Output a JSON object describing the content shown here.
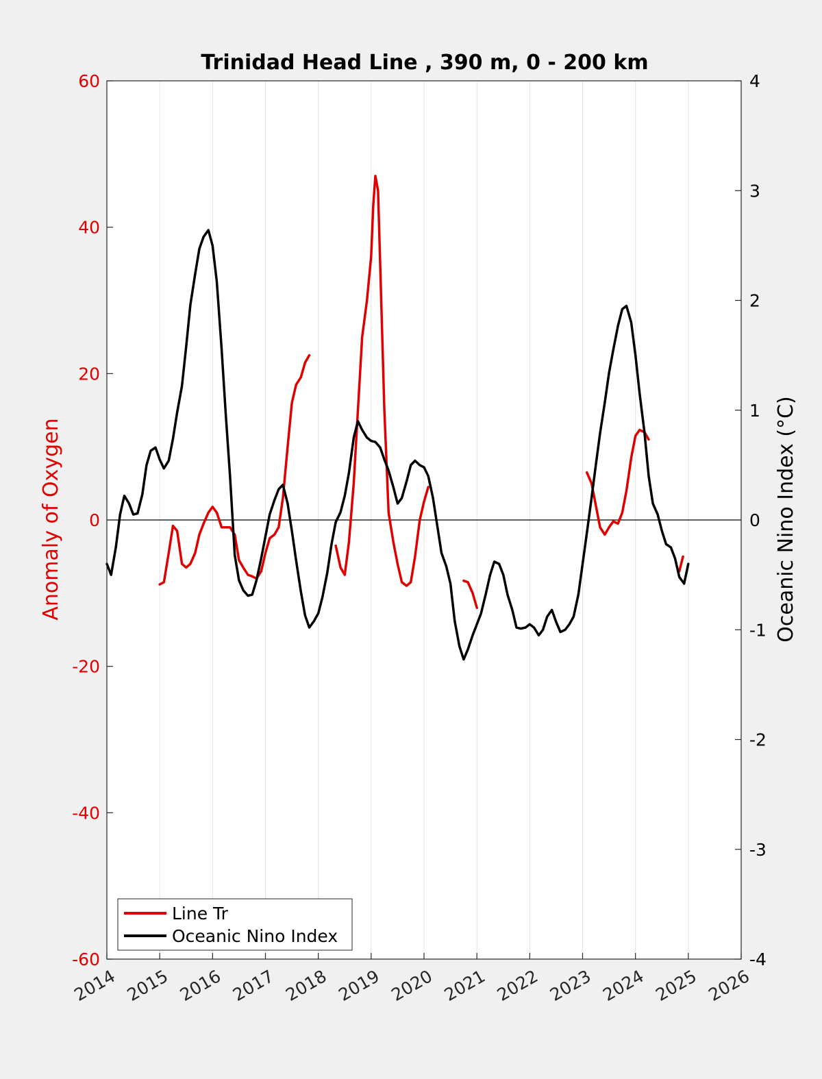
{
  "chart_data": {
    "type": "line",
    "title": "Trinidad Head Line , 390 m, 0 - 200 km",
    "xlabel": "",
    "ylabel_left": "Anomaly of Oxygen",
    "ylabel_right": "Oceanic Nino Index (°C)",
    "xlim": [
      2014,
      2026
    ],
    "ylim_left": [
      -60,
      60
    ],
    "ylim_right": [
      -4,
      4
    ],
    "x_ticks": [
      2014,
      2015,
      2016,
      2017,
      2018,
      2019,
      2020,
      2021,
      2022,
      2023,
      2024,
      2025,
      2026
    ],
    "y_ticks_left": [
      60,
      40,
      20,
      0,
      -20,
      -40,
      -60
    ],
    "y_ticks_right": [
      4,
      3,
      2,
      1,
      0,
      -1,
      -2,
      -3,
      -4
    ],
    "grid": "vertical",
    "zero_line": true,
    "legend_position": "bottom-left",
    "colors": {
      "line_tr": "#e00000",
      "oni": "#000000"
    },
    "series": [
      {
        "name": "Line Tr",
        "axis": "left",
        "color": "#e00000",
        "segments": [
          [
            [
              2015.0,
              -8.8
            ],
            [
              2015.08,
              -8.5
            ],
            [
              2015.17,
              -4.5
            ],
            [
              2015.25,
              -0.8
            ],
            [
              2015.33,
              -1.5
            ],
            [
              2015.42,
              -6.0
            ],
            [
              2015.5,
              -6.5
            ],
            [
              2015.58,
              -6.0
            ],
            [
              2015.67,
              -4.5
            ],
            [
              2015.75,
              -2.0
            ],
            [
              2015.83,
              -0.5
            ],
            [
              2015.92,
              1.0
            ],
            [
              2016.0,
              1.8
            ],
            [
              2016.08,
              1.0
            ],
            [
              2016.17,
              -1.0
            ],
            [
              2016.25,
              -1.0
            ],
            [
              2016.33,
              -1.0
            ],
            [
              2016.42,
              -2.0
            ],
            [
              2016.5,
              -5.5
            ],
            [
              2016.58,
              -6.5
            ],
            [
              2016.67,
              -7.5
            ],
            [
              2016.75,
              -7.7
            ],
            [
              2016.83,
              -8.0
            ],
            [
              2016.92,
              -7.0
            ],
            [
              2017.0,
              -4.5
            ],
            [
              2017.08,
              -2.5
            ],
            [
              2017.17,
              -2.0
            ],
            [
              2017.25,
              -1.0
            ],
            [
              2017.33,
              3.0
            ],
            [
              2017.42,
              10.0
            ],
            [
              2017.5,
              16.0
            ],
            [
              2017.58,
              18.5
            ],
            [
              2017.67,
              19.5
            ],
            [
              2017.75,
              21.5
            ],
            [
              2017.83,
              22.5
            ]
          ],
          [
            [
              2018.33,
              -3.5
            ],
            [
              2018.42,
              -6.5
            ],
            [
              2018.5,
              -7.5
            ],
            [
              2018.58,
              -3.0
            ],
            [
              2018.67,
              5.0
            ],
            [
              2018.75,
              15.0
            ],
            [
              2018.83,
              25.0
            ],
            [
              2018.92,
              30.0
            ],
            [
              2019.0,
              36.0
            ],
            [
              2019.04,
              43.0
            ],
            [
              2019.08,
              47.0
            ],
            [
              2019.13,
              45.0
            ],
            [
              2019.17,
              35.0
            ],
            [
              2019.25,
              15.0
            ],
            [
              2019.33,
              1.0
            ],
            [
              2019.42,
              -3.0
            ],
            [
              2019.5,
              -6.0
            ],
            [
              2019.58,
              -8.5
            ],
            [
              2019.67,
              -9.0
            ],
            [
              2019.75,
              -8.5
            ],
            [
              2019.83,
              -5.0
            ],
            [
              2019.92,
              0.0
            ],
            [
              2020.0,
              2.5
            ],
            [
              2020.08,
              4.5
            ]
          ],
          [
            [
              2020.75,
              -8.3
            ],
            [
              2020.83,
              -8.5
            ],
            [
              2020.92,
              -10.0
            ],
            [
              2021.0,
              -12.0
            ]
          ],
          [
            [
              2023.08,
              6.5
            ],
            [
              2023.17,
              5.0
            ],
            [
              2023.25,
              2.0
            ],
            [
              2023.33,
              -1.0
            ],
            [
              2023.42,
              -2.0
            ],
            [
              2023.5,
              -1.0
            ],
            [
              2023.58,
              -0.2
            ],
            [
              2023.67,
              -0.5
            ],
            [
              2023.75,
              1.0
            ],
            [
              2023.83,
              4.0
            ],
            [
              2023.92,
              8.5
            ],
            [
              2024.0,
              11.5
            ],
            [
              2024.08,
              12.3
            ],
            [
              2024.17,
              12.0
            ],
            [
              2024.25,
              11.0
            ]
          ],
          [
            [
              2024.83,
              -7.0
            ],
            [
              2024.9,
              -5.0
            ]
          ]
        ]
      },
      {
        "name": "Oceanic Nino Index",
        "axis": "right",
        "color": "#000000",
        "points": [
          [
            2014.0,
            -0.4
          ],
          [
            2014.08,
            -0.5
          ],
          [
            2014.17,
            -0.25
          ],
          [
            2014.25,
            0.05
          ],
          [
            2014.33,
            0.22
          ],
          [
            2014.42,
            0.15
          ],
          [
            2014.5,
            0.05
          ],
          [
            2014.58,
            0.06
          ],
          [
            2014.67,
            0.23
          ],
          [
            2014.75,
            0.5
          ],
          [
            2014.83,
            0.63
          ],
          [
            2014.92,
            0.66
          ],
          [
            2015.0,
            0.55
          ],
          [
            2015.08,
            0.47
          ],
          [
            2015.17,
            0.54
          ],
          [
            2015.25,
            0.74
          ],
          [
            2015.33,
            0.98
          ],
          [
            2015.42,
            1.22
          ],
          [
            2015.5,
            1.58
          ],
          [
            2015.58,
            1.96
          ],
          [
            2015.67,
            2.24
          ],
          [
            2015.75,
            2.47
          ],
          [
            2015.83,
            2.58
          ],
          [
            2015.92,
            2.64
          ],
          [
            2016.0,
            2.5
          ],
          [
            2016.08,
            2.17
          ],
          [
            2016.17,
            1.56
          ],
          [
            2016.25,
            0.96
          ],
          [
            2016.33,
            0.4
          ],
          [
            2016.42,
            -0.32
          ],
          [
            2016.5,
            -0.55
          ],
          [
            2016.58,
            -0.64
          ],
          [
            2016.67,
            -0.69
          ],
          [
            2016.75,
            -0.68
          ],
          [
            2016.83,
            -0.55
          ],
          [
            2016.92,
            -0.35
          ],
          [
            2017.0,
            -0.15
          ],
          [
            2017.08,
            0.05
          ],
          [
            2017.17,
            0.18
          ],
          [
            2017.25,
            0.28
          ],
          [
            2017.33,
            0.32
          ],
          [
            2017.42,
            0.15
          ],
          [
            2017.5,
            -0.1
          ],
          [
            2017.58,
            -0.37
          ],
          [
            2017.67,
            -0.65
          ],
          [
            2017.75,
            -0.87
          ],
          [
            2017.83,
            -0.98
          ],
          [
            2017.92,
            -0.92
          ],
          [
            2018.0,
            -0.85
          ],
          [
            2018.08,
            -0.7
          ],
          [
            2018.17,
            -0.48
          ],
          [
            2018.25,
            -0.22
          ],
          [
            2018.33,
            -0.02
          ],
          [
            2018.42,
            0.07
          ],
          [
            2018.5,
            0.22
          ],
          [
            2018.58,
            0.43
          ],
          [
            2018.67,
            0.75
          ],
          [
            2018.75,
            0.9
          ],
          [
            2018.83,
            0.82
          ],
          [
            2018.92,
            0.75
          ],
          [
            2019.0,
            0.72
          ],
          [
            2019.08,
            0.71
          ],
          [
            2019.17,
            0.66
          ],
          [
            2019.25,
            0.55
          ],
          [
            2019.33,
            0.45
          ],
          [
            2019.42,
            0.3
          ],
          [
            2019.5,
            0.15
          ],
          [
            2019.58,
            0.2
          ],
          [
            2019.67,
            0.35
          ],
          [
            2019.75,
            0.5
          ],
          [
            2019.83,
            0.54
          ],
          [
            2019.92,
            0.5
          ],
          [
            2020.0,
            0.48
          ],
          [
            2020.08,
            0.4
          ],
          [
            2020.17,
            0.2
          ],
          [
            2020.25,
            -0.05
          ],
          [
            2020.33,
            -0.3
          ],
          [
            2020.42,
            -0.42
          ],
          [
            2020.5,
            -0.58
          ],
          [
            2020.58,
            -0.92
          ],
          [
            2020.67,
            -1.15
          ],
          [
            2020.75,
            -1.27
          ],
          [
            2020.83,
            -1.18
          ],
          [
            2020.92,
            -1.05
          ],
          [
            2021.0,
            -0.95
          ],
          [
            2021.08,
            -0.85
          ],
          [
            2021.17,
            -0.67
          ],
          [
            2021.25,
            -0.5
          ],
          [
            2021.33,
            -0.38
          ],
          [
            2021.42,
            -0.4
          ],
          [
            2021.5,
            -0.5
          ],
          [
            2021.58,
            -0.68
          ],
          [
            2021.67,
            -0.82
          ],
          [
            2021.75,
            -0.98
          ],
          [
            2021.83,
            -0.99
          ],
          [
            2021.92,
            -0.98
          ],
          [
            2022.0,
            -0.95
          ],
          [
            2022.08,
            -0.98
          ],
          [
            2022.17,
            -1.05
          ],
          [
            2022.25,
            -1.0
          ],
          [
            2022.33,
            -0.88
          ],
          [
            2022.42,
            -0.82
          ],
          [
            2022.5,
            -0.93
          ],
          [
            2022.58,
            -1.02
          ],
          [
            2022.67,
            -1.0
          ],
          [
            2022.75,
            -0.95
          ],
          [
            2022.83,
            -0.88
          ],
          [
            2022.92,
            -0.68
          ],
          [
            2023.0,
            -0.4
          ],
          [
            2023.08,
            -0.12
          ],
          [
            2023.17,
            0.2
          ],
          [
            2023.25,
            0.5
          ],
          [
            2023.33,
            0.79
          ],
          [
            2023.42,
            1.07
          ],
          [
            2023.5,
            1.34
          ],
          [
            2023.58,
            1.55
          ],
          [
            2023.67,
            1.77
          ],
          [
            2023.75,
            1.92
          ],
          [
            2023.83,
            1.95
          ],
          [
            2023.92,
            1.8
          ],
          [
            2024.0,
            1.5
          ],
          [
            2024.08,
            1.15
          ],
          [
            2024.17,
            0.8
          ],
          [
            2024.25,
            0.4
          ],
          [
            2024.33,
            0.15
          ],
          [
            2024.42,
            0.05
          ],
          [
            2024.5,
            -0.1
          ],
          [
            2024.58,
            -0.22
          ],
          [
            2024.67,
            -0.25
          ],
          [
            2024.75,
            -0.35
          ],
          [
            2024.83,
            -0.52
          ],
          [
            2024.92,
            -0.58
          ],
          [
            2025.0,
            -0.4
          ]
        ]
      }
    ]
  }
}
